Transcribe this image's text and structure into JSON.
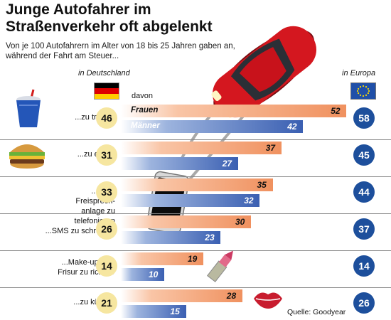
{
  "title": "Junge Autofahrer im Straßenverkehr oft abgelenkt",
  "subtitle": "Von je 100 Autofahrern im Alter von 18 bis 25 Jahren gaben an, während der Fahrt am Steuer...",
  "header_germany": "in Deutschland",
  "header_europe": "in Europa",
  "header_davon": "davon",
  "source": "Quelle: Goodyear",
  "colors": {
    "frauen": "#f0915f",
    "maenner": "#3a5fb2",
    "germany_circle": "#f6e6a0",
    "europe_circle": "#1d4f9c"
  },
  "icons": [
    "drink-cup-icon",
    "burger-icon",
    "smartphone-icon",
    "lipstick-icon",
    "lips-kiss-icon",
    "red-car-icon",
    "germany-flag-icon",
    "eu-flag-icon"
  ],
  "chart_data": {
    "type": "bar",
    "orientation": "horizontal",
    "categories": [
      "...zu trinken",
      "...zu essen",
      "...ohne Freisprechanlage zu telefonieren",
      "...SMS zu schreiben",
      "...Make-up und Frisur zu richten",
      "...zu küssen"
    ],
    "category_labels": [
      "...zu trinken",
      "...zu essen",
      "...ohne Freisprech- anlage zu telefonieren",
      "...SMS zu schreiben",
      "...Make-up und Frisur zu richten",
      "...zu küssen"
    ],
    "series": [
      {
        "name": "Frauen",
        "values": [
          52,
          37,
          35,
          30,
          19,
          28
        ]
      },
      {
        "name": "Männer",
        "values": [
          42,
          27,
          32,
          23,
          10,
          15
        ]
      }
    ],
    "germany_total": [
      46,
      31,
      33,
      26,
      14,
      21
    ],
    "europe_total": [
      58,
      45,
      44,
      37,
      14,
      26
    ],
    "xlim": [
      0,
      60
    ]
  }
}
